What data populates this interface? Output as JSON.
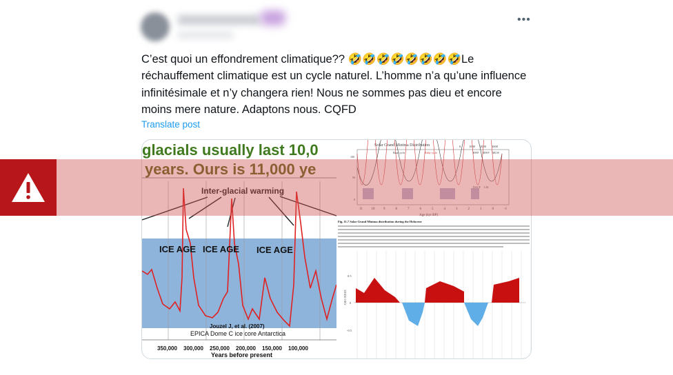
{
  "post": {
    "text": "C’est quoi un effondrement climatique?? 🤣🤣🤣🤣🤣🤣🤣🤣Le réchauffement climatique est un cycle naturel. L’homme n’a qu’une influence infinitésimale et n’y changera rien! Nous ne sommes pas dieu et encore moins mere nature. Adaptons nous. CQFD",
    "translate_label": "Translate post",
    "more_icon": "more-horizontal-icon"
  },
  "left_image": {
    "headline_1": "glacials usually last 10,0",
    "headline_2": "years. Ours is 11,000 ye",
    "annotation": "Inter-glacial warming",
    "ice_age_labels": [
      "ICE AGE",
      "ICE AGE",
      "ICE AGE"
    ],
    "citation": "Jouzel J, et al. (2007)",
    "source": "EPICA Dome C ice core Antarctica",
    "x_ticks": [
      "350,000",
      "300,000",
      "250,000",
      "200,000",
      "150,000",
      "100,000"
    ],
    "x_label": "Years before present",
    "colors": {
      "headline": "#3f7a1f",
      "line": "#e02020",
      "ice": "#8fb4dc"
    }
  },
  "right_image": {
    "title": "Solar Grand Minima Distribution",
    "series_labels": [
      "Bray cycle",
      "Eddy cycle"
    ],
    "period_labels": [
      "RWP",
      "MWP",
      "MGW",
      "DACP",
      "LIA"
    ],
    "top_ticks": [
      "0",
      "1000",
      "2000",
      "3000"
    ],
    "y_ticks": [
      "100",
      "50",
      "0"
    ],
    "x_ticks": [
      "11",
      "10",
      "9",
      "8",
      "7",
      "6",
      "5",
      "4",
      "3",
      "2",
      "1",
      "0",
      "-1"
    ],
    "x_label": "Age (kyr BP)",
    "caption_title": "Fig. 11.7 Solar Grand Minima distribution during the Holocene",
    "lower_y_label": "AMO INDEX",
    "lower_y_ticks": [
      "0.5",
      "0",
      "-0.5"
    ]
  },
  "warning": {
    "icon": "warning-triangle-icon",
    "color": "#b7161a"
  }
}
